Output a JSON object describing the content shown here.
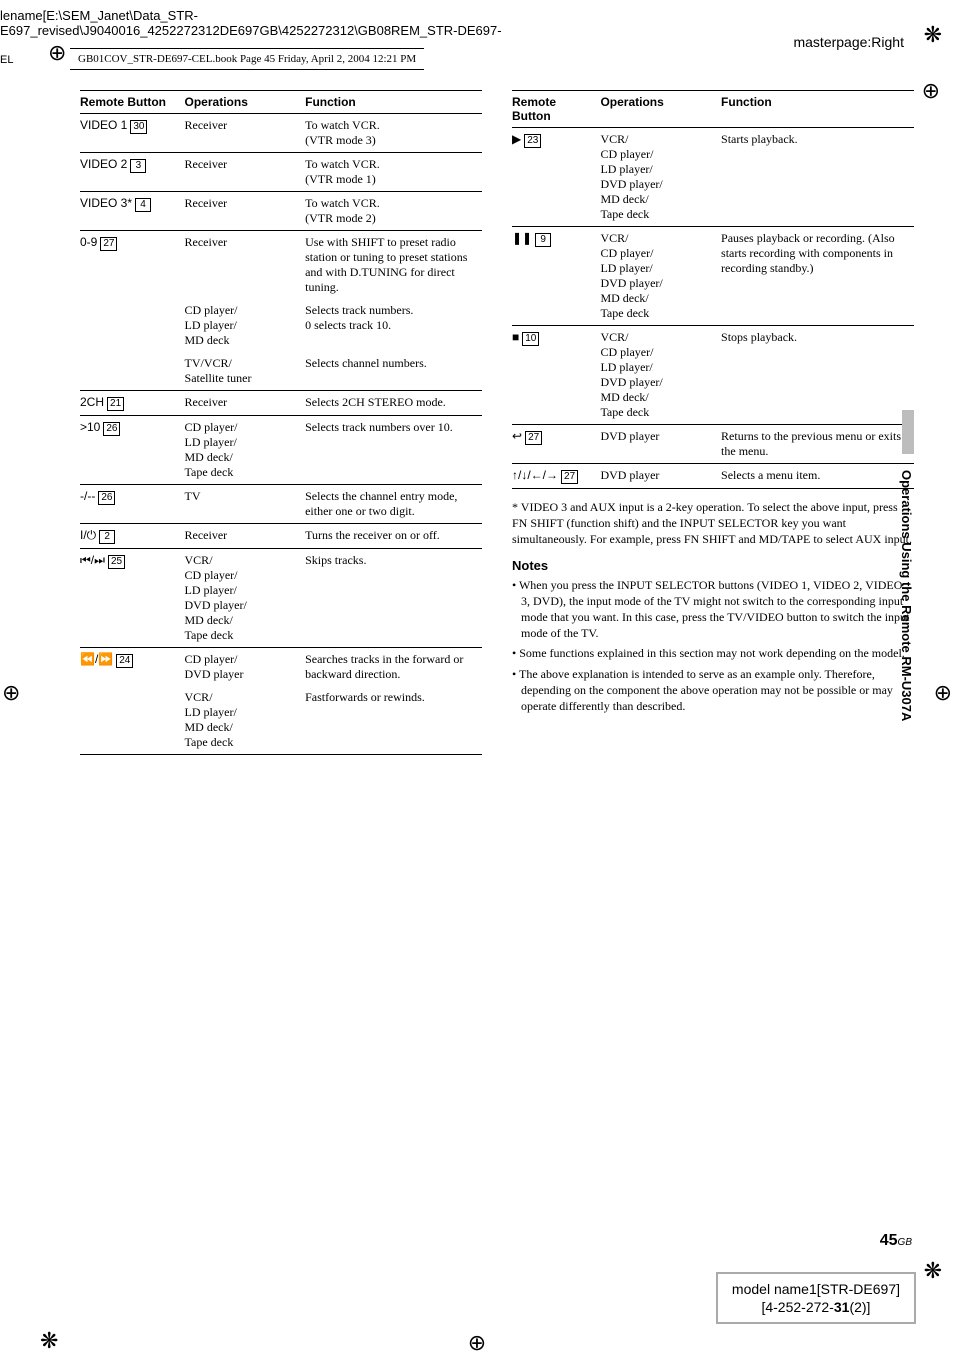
{
  "header": {
    "filename": "lename[E:\\SEM_Janet\\Data_STR-",
    "path": "E697_revised\\J9040016_4252272312DE697GB\\4252272312\\GB08REM_STR-DE697-",
    "cel": "EL",
    "bookline": "GB01COV_STR-DE697-CEL.book  Page 45  Friday, April 2, 2004  12:21 PM",
    "masterpage": "masterpage:Right"
  },
  "left_table": {
    "headers": [
      "Remote Button",
      "Operations",
      "Function"
    ],
    "rows": [
      {
        "btn": "VIDEO 1",
        "box": "30",
        "ops": "Receiver",
        "func": "To watch VCR.\n(VTR mode 3)"
      },
      {
        "btn": "VIDEO 2",
        "box": "3",
        "ops": "Receiver",
        "func": "To watch VCR.\n(VTR mode 1)"
      },
      {
        "btn": "VIDEO 3*",
        "box": "4",
        "ops": "Receiver",
        "func": "To watch VCR.\n(VTR mode 2)"
      },
      {
        "btn": "0-9",
        "box": "27",
        "ops": "Receiver",
        "func": "Use with SHIFT to preset radio station or tuning to preset stations and with D.TUNING for direct tuning.",
        "nobottom": true
      },
      {
        "btn": "",
        "box": "",
        "ops": "CD player/\nLD player/\nMD deck",
        "func": "Selects track numbers.\n0 selects track 10.",
        "nobottom": true
      },
      {
        "btn": "",
        "box": "",
        "ops": "TV/VCR/\nSatellite tuner",
        "func": "Selects channel numbers."
      },
      {
        "btn": "2CH",
        "box": "21",
        "ops": "Receiver",
        "func": "Selects 2CH STEREO mode."
      },
      {
        "btn": ">10",
        "box": "26",
        "ops": "CD player/\nLD player/\nMD deck/\nTape deck",
        "func": "Selects track numbers over 10."
      },
      {
        "btn": "-/--",
        "box": "26",
        "ops": "TV",
        "func": "Selects the channel entry mode, either one or two digit."
      },
      {
        "btn": "I/⏻",
        "box": "2",
        "ops": "Receiver",
        "func": "Turns the receiver on or off."
      },
      {
        "btn": "⏮/⏭",
        "box": "25",
        "ops": "VCR/\nCD player/\nLD player/\nDVD player/\nMD deck/\nTape deck",
        "func": "Skips tracks."
      },
      {
        "btn": "⏪/⏩",
        "box": "24",
        "ops": "CD player/\nDVD player",
        "func": "Searches tracks in the forward or backward direction.",
        "nobottom": true
      },
      {
        "btn": "",
        "box": "",
        "ops": "VCR/\nLD player/\nMD deck/\nTape deck",
        "func": "Fastforwards or rewinds."
      }
    ]
  },
  "right_table": {
    "headers": [
      "Remote Button",
      "Operations",
      "Function"
    ],
    "rows": [
      {
        "btn": "▶",
        "box": "23",
        "ops": "VCR/\nCD player/\nLD player/\nDVD player/\nMD deck/\nTape deck",
        "func": "Starts playback."
      },
      {
        "btn": "❚❚",
        "box": "9",
        "ops": "VCR/\nCD player/\nLD player/\nDVD player/\nMD deck/\nTape deck",
        "func": "Pauses playback or recording. (Also starts recording with components in recording standby.)"
      },
      {
        "btn": "■",
        "box": "10",
        "ops": "VCR/\nCD player/\nLD player/\nDVD player/\nMD deck/\nTape deck",
        "func": "Stops playback."
      },
      {
        "btn": "↩",
        "box": "27",
        "ops": "DVD player",
        "func": "Returns to the previous menu or exits the menu."
      },
      {
        "btn": "↑/↓/←/→",
        "box": "27",
        "ops": "DVD player",
        "func": "Selects a menu item."
      }
    ]
  },
  "footnote": "* VIDEO 3 and AUX input is a 2-key operation. To select the above input, press FN SHIFT (function shift) and the INPUT SELECTOR key you want simultaneously. For example, press FN SHIFT and MD/TAPE to select AUX input.",
  "notes_head": "Notes",
  "notes": [
    "When you press the INPUT SELECTOR buttons (VIDEO 1, VIDEO 2, VIDEO 3, DVD), the input mode of the TV might not switch to the corresponding input mode that you want. In this case, press the TV/VIDEO button to switch the input mode of the TV.",
    "Some functions explained in this section may not work depending on the model.",
    "The above explanation is intended to serve as an example only. Therefore, depending on the component the above operation may not be possible or may operate differently than described."
  ],
  "side_tab": "Operations Using the Remote RM-U307A",
  "page_num": "45",
  "page_gb": "GB",
  "model_box": {
    "line1": "model name1[STR-DE697]",
    "line2": "[4-252-272-<b>31</b>(2)]"
  }
}
